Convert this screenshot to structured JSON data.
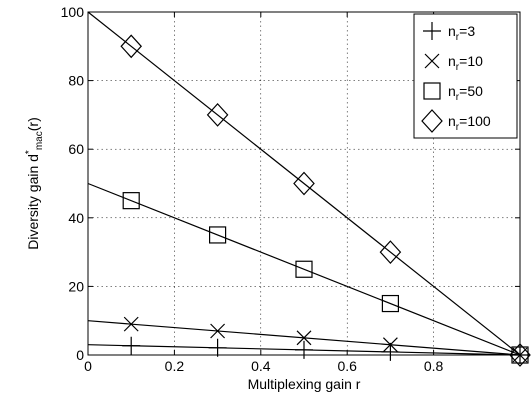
{
  "chart_data": {
    "type": "line",
    "xlabel": "Multiplexing gain r",
    "ylabel": {
      "main": "Diversity gain d",
      "sup": "*",
      "sub": "mac",
      "tail": "(r)"
    },
    "xlim": [
      0,
      1
    ],
    "ylim": [
      0,
      100
    ],
    "xticks": [
      0,
      0.2,
      0.4,
      0.6,
      0.8
    ],
    "xtick_labels": [
      "0",
      "0.2",
      "0.4",
      "0.6",
      "0.8"
    ],
    "yticks": [
      0,
      20,
      40,
      60,
      80,
      100
    ],
    "ytick_labels": [
      "0",
      "20",
      "40",
      "60",
      "80",
      "100"
    ],
    "grid": true,
    "legend_position": "top-right",
    "series": [
      {
        "name": "n_r=3",
        "legend_main": "n",
        "legend_sub": "r",
        "legend_tail": "=3",
        "marker": "plus",
        "line": {
          "x": [
            0,
            1
          ],
          "y": [
            3,
            0
          ]
        },
        "points": {
          "x": [
            0.1,
            0.3,
            0.5,
            0.7,
            1.0
          ],
          "y": [
            2.7,
            2.1,
            1.5,
            0.9,
            0
          ]
        }
      },
      {
        "name": "n_r=10",
        "legend_main": "n",
        "legend_sub": "r",
        "legend_tail": "=10",
        "marker": "x",
        "line": {
          "x": [
            0,
            1
          ],
          "y": [
            10,
            0
          ]
        },
        "points": {
          "x": [
            0.1,
            0.3,
            0.5,
            0.7,
            1.0
          ],
          "y": [
            9,
            7,
            5,
            3,
            0
          ]
        }
      },
      {
        "name": "n_r=50",
        "legend_main": "n",
        "legend_sub": "r",
        "legend_tail": "=50",
        "marker": "square",
        "line": {
          "x": [
            0,
            1
          ],
          "y": [
            50,
            0
          ]
        },
        "points": {
          "x": [
            0.1,
            0.3,
            0.5,
            0.7,
            1.0
          ],
          "y": [
            45,
            35,
            25,
            15,
            0
          ]
        }
      },
      {
        "name": "n_r=100",
        "legend_main": "n",
        "legend_sub": "r",
        "legend_tail": "=100",
        "marker": "diamond",
        "line": {
          "x": [
            0,
            1
          ],
          "y": [
            100,
            0
          ]
        },
        "points": {
          "x": [
            0.1,
            0.3,
            0.5,
            0.7,
            1.0
          ],
          "y": [
            90,
            70,
            50,
            30,
            0
          ]
        }
      }
    ]
  }
}
